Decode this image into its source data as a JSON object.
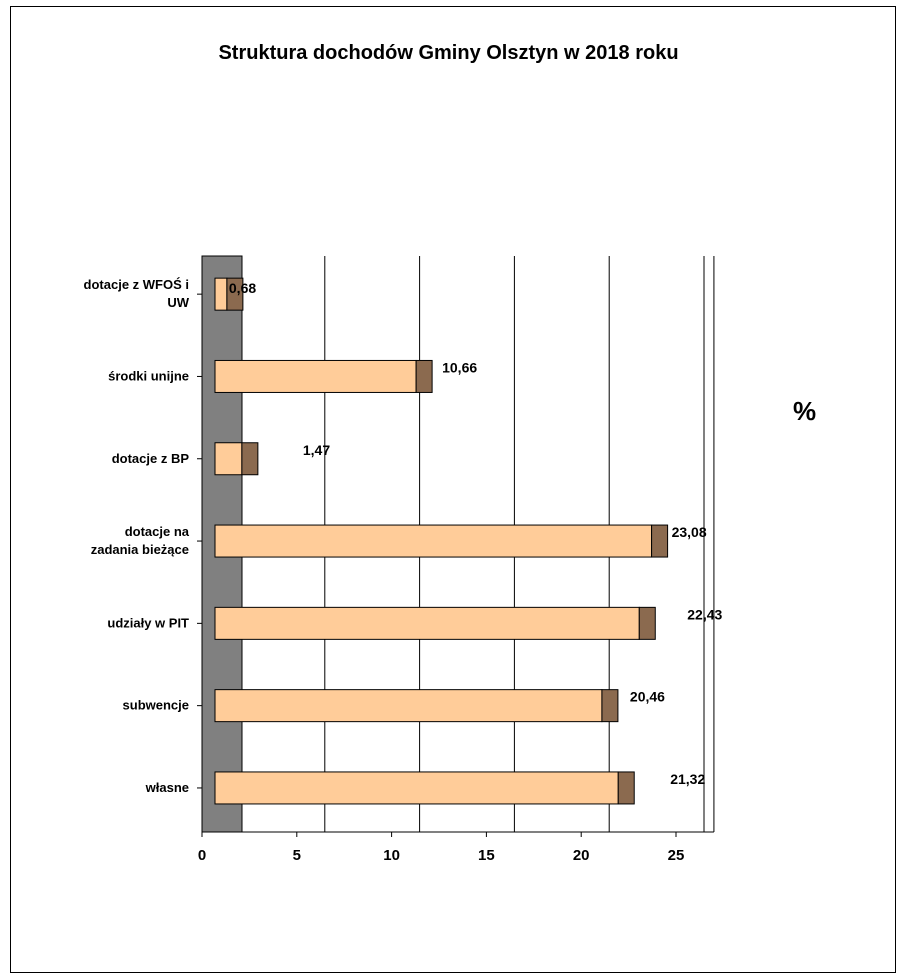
{
  "chart_data": {
    "type": "bar",
    "orientation": "horizontal",
    "title": "Struktura dochodów Gminy Olsztyn w 2018 roku",
    "unit_label": "%",
    "categories": [
      [
        "dotacje z WFOŚ i",
        "UW"
      ],
      [
        "środki unijne"
      ],
      [
        "dotacje z BP"
      ],
      [
        "dotacje na",
        "zadania bieżące"
      ],
      [
        "udziały w PIT"
      ],
      [
        "subwencje"
      ],
      [
        "własne"
      ]
    ],
    "values": [
      0.68,
      10.66,
      1.47,
      23.08,
      22.43,
      20.46,
      21.32
    ],
    "value_labels": [
      "0,68",
      "10,66",
      "1,47",
      "23,08",
      "22,43",
      "20,46",
      "21,32"
    ],
    "xlim": [
      0,
      27
    ],
    "xticks": [
      0,
      5,
      10,
      15,
      20,
      25
    ],
    "grid": true,
    "bar_color": "#FFCC99",
    "bar_side_color": "#8B6A4F",
    "wall_color": "#808080"
  }
}
